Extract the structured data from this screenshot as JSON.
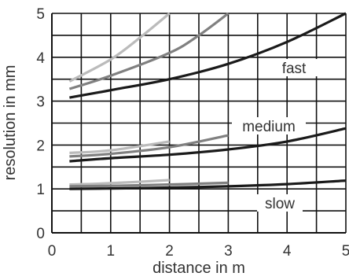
{
  "chart_data": {
    "type": "line",
    "title": "",
    "xlabel": "distance in m",
    "ylabel": "resolution in mm",
    "xlim": [
      0,
      5
    ],
    "ylim": [
      0,
      5
    ],
    "x_ticks": [
      "0",
      "1",
      "2",
      "3",
      "4",
      "5"
    ],
    "y_ticks": [
      "0",
      "1",
      "2",
      "3",
      "4",
      "5"
    ],
    "grid": true,
    "minor_y_grid": 0.5,
    "annotations": [
      "fast",
      "medium",
      "slow"
    ],
    "series": [
      {
        "group": "fast",
        "color": "#bbbbbb",
        "x": [
          0.3,
          1.0,
          1.5,
          2.0
        ],
        "y": [
          3.45,
          3.95,
          4.45,
          5.0
        ]
      },
      {
        "group": "fast",
        "color": "#808080",
        "x": [
          0.3,
          1.0,
          2.0,
          2.5,
          3.0
        ],
        "y": [
          3.28,
          3.58,
          4.1,
          4.5,
          5.0
        ]
      },
      {
        "group": "fast",
        "color": "#1a1a1a",
        "x": [
          0.3,
          1.0,
          2.0,
          3.0,
          4.0,
          5.0
        ],
        "y": [
          3.08,
          3.25,
          3.5,
          3.85,
          4.35,
          5.0
        ]
      },
      {
        "group": "medium",
        "color": "#bbbbbb",
        "x": [
          0.3,
          1.0,
          2.0
        ],
        "y": [
          1.82,
          1.88,
          2.08
        ]
      },
      {
        "group": "medium",
        "color": "#808080",
        "x": [
          0.3,
          1.0,
          2.0,
          3.0
        ],
        "y": [
          1.74,
          1.8,
          1.95,
          2.22
        ]
      },
      {
        "group": "medium",
        "color": "#1a1a1a",
        "x": [
          0.3,
          1.0,
          2.0,
          3.0,
          4.0,
          5.0
        ],
        "y": [
          1.63,
          1.7,
          1.78,
          1.9,
          2.08,
          2.38
        ]
      },
      {
        "group": "slow",
        "color": "#bbbbbb",
        "x": [
          0.3,
          1.0,
          2.0
        ],
        "y": [
          1.1,
          1.13,
          1.2
        ]
      },
      {
        "group": "slow",
        "color": "#808080",
        "x": [
          0.3,
          1.0,
          2.0,
          3.0
        ],
        "y": [
          1.06,
          1.07,
          1.1,
          1.14
        ]
      },
      {
        "group": "slow",
        "color": "#1a1a1a",
        "x": [
          0.3,
          1.0,
          2.0,
          3.0,
          4.0,
          5.0
        ],
        "y": [
          1.0,
          1.01,
          1.03,
          1.06,
          1.11,
          1.19
        ]
      }
    ]
  }
}
